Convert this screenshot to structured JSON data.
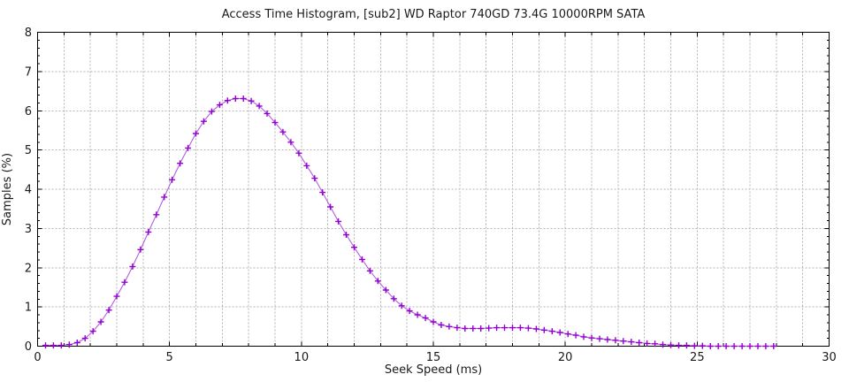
{
  "chart_data": {
    "type": "line",
    "title": "Access Time Histogram, [sub2] WD Raptor 740GD 73.4G 10000RPM SATA",
    "xlabel": "Seek Speed (ms)",
    "ylabel": "Samples (%)",
    "xlim": [
      0,
      30
    ],
    "ylim": [
      0,
      8
    ],
    "x_major_tick_step": 5,
    "x_minor_tick_step": 1,
    "y_major_tick_step": 1,
    "y_minor_tick_step": 0.2,
    "grid": {
      "x_step": 1,
      "y_step": 1,
      "style": "dashed",
      "color": "#b3b3b3"
    },
    "legend": "none",
    "series": [
      {
        "name": "samples-histogram",
        "marker": "plus",
        "line_color": "#b060e0",
        "marker_color": "#9400d3",
        "x": [
          0.3,
          0.6,
          0.9,
          1.2,
          1.5,
          1.8,
          2.1,
          2.4,
          2.7,
          3.0,
          3.3,
          3.6,
          3.9,
          4.2,
          4.5,
          4.8,
          5.1,
          5.4,
          5.7,
          6.0,
          6.3,
          6.6,
          6.9,
          7.2,
          7.5,
          7.8,
          8.1,
          8.4,
          8.7,
          9.0,
          9.3,
          9.6,
          9.9,
          10.2,
          10.5,
          10.8,
          11.1,
          11.4,
          11.7,
          12.0,
          12.3,
          12.6,
          12.9,
          13.2,
          13.5,
          13.8,
          14.1,
          14.4,
          14.7,
          15.0,
          15.3,
          15.6,
          15.9,
          16.2,
          16.5,
          16.8,
          17.1,
          17.4,
          17.7,
          18.0,
          18.3,
          18.6,
          18.9,
          19.2,
          19.5,
          19.8,
          20.1,
          20.4,
          20.7,
          21.0,
          21.3,
          21.6,
          21.9,
          22.2,
          22.5,
          22.8,
          23.1,
          23.4,
          23.7,
          24.0,
          24.3,
          24.6,
          24.9,
          25.2,
          25.5,
          25.8,
          26.1,
          26.4,
          26.7,
          27.0,
          27.3,
          27.6,
          27.9
        ],
        "y": [
          0.02,
          0.02,
          0.02,
          0.04,
          0.09,
          0.2,
          0.38,
          0.62,
          0.92,
          1.27,
          1.63,
          2.03,
          2.46,
          2.91,
          3.35,
          3.8,
          4.24,
          4.66,
          5.05,
          5.42,
          5.73,
          5.98,
          6.15,
          6.26,
          6.31,
          6.31,
          6.25,
          6.12,
          5.93,
          5.7,
          5.46,
          5.2,
          4.92,
          4.6,
          4.28,
          3.92,
          3.55,
          3.18,
          2.84,
          2.52,
          2.21,
          1.92,
          1.66,
          1.43,
          1.21,
          1.03,
          0.9,
          0.8,
          0.72,
          0.62,
          0.54,
          0.5,
          0.47,
          0.45,
          0.45,
          0.45,
          0.46,
          0.47,
          0.47,
          0.47,
          0.47,
          0.46,
          0.44,
          0.41,
          0.38,
          0.35,
          0.31,
          0.28,
          0.24,
          0.21,
          0.19,
          0.17,
          0.15,
          0.13,
          0.11,
          0.09,
          0.07,
          0.06,
          0.04,
          0.03,
          0.02,
          0.02,
          0.01,
          0.01,
          0.0,
          0.0,
          0.0,
          0.0,
          0.0,
          0.0,
          0.0,
          0.0,
          0.0
        ]
      }
    ],
    "x_tick_labels": [
      "0",
      "5",
      "10",
      "15",
      "20",
      "25",
      "30"
    ],
    "y_tick_labels": [
      "0",
      "1",
      "2",
      "3",
      "4",
      "5",
      "6",
      "7",
      "8"
    ]
  },
  "colors": {
    "background": "#ffffff",
    "border": "#000000",
    "text": "#1a1a1a",
    "grid": "#b3b3b3"
  }
}
